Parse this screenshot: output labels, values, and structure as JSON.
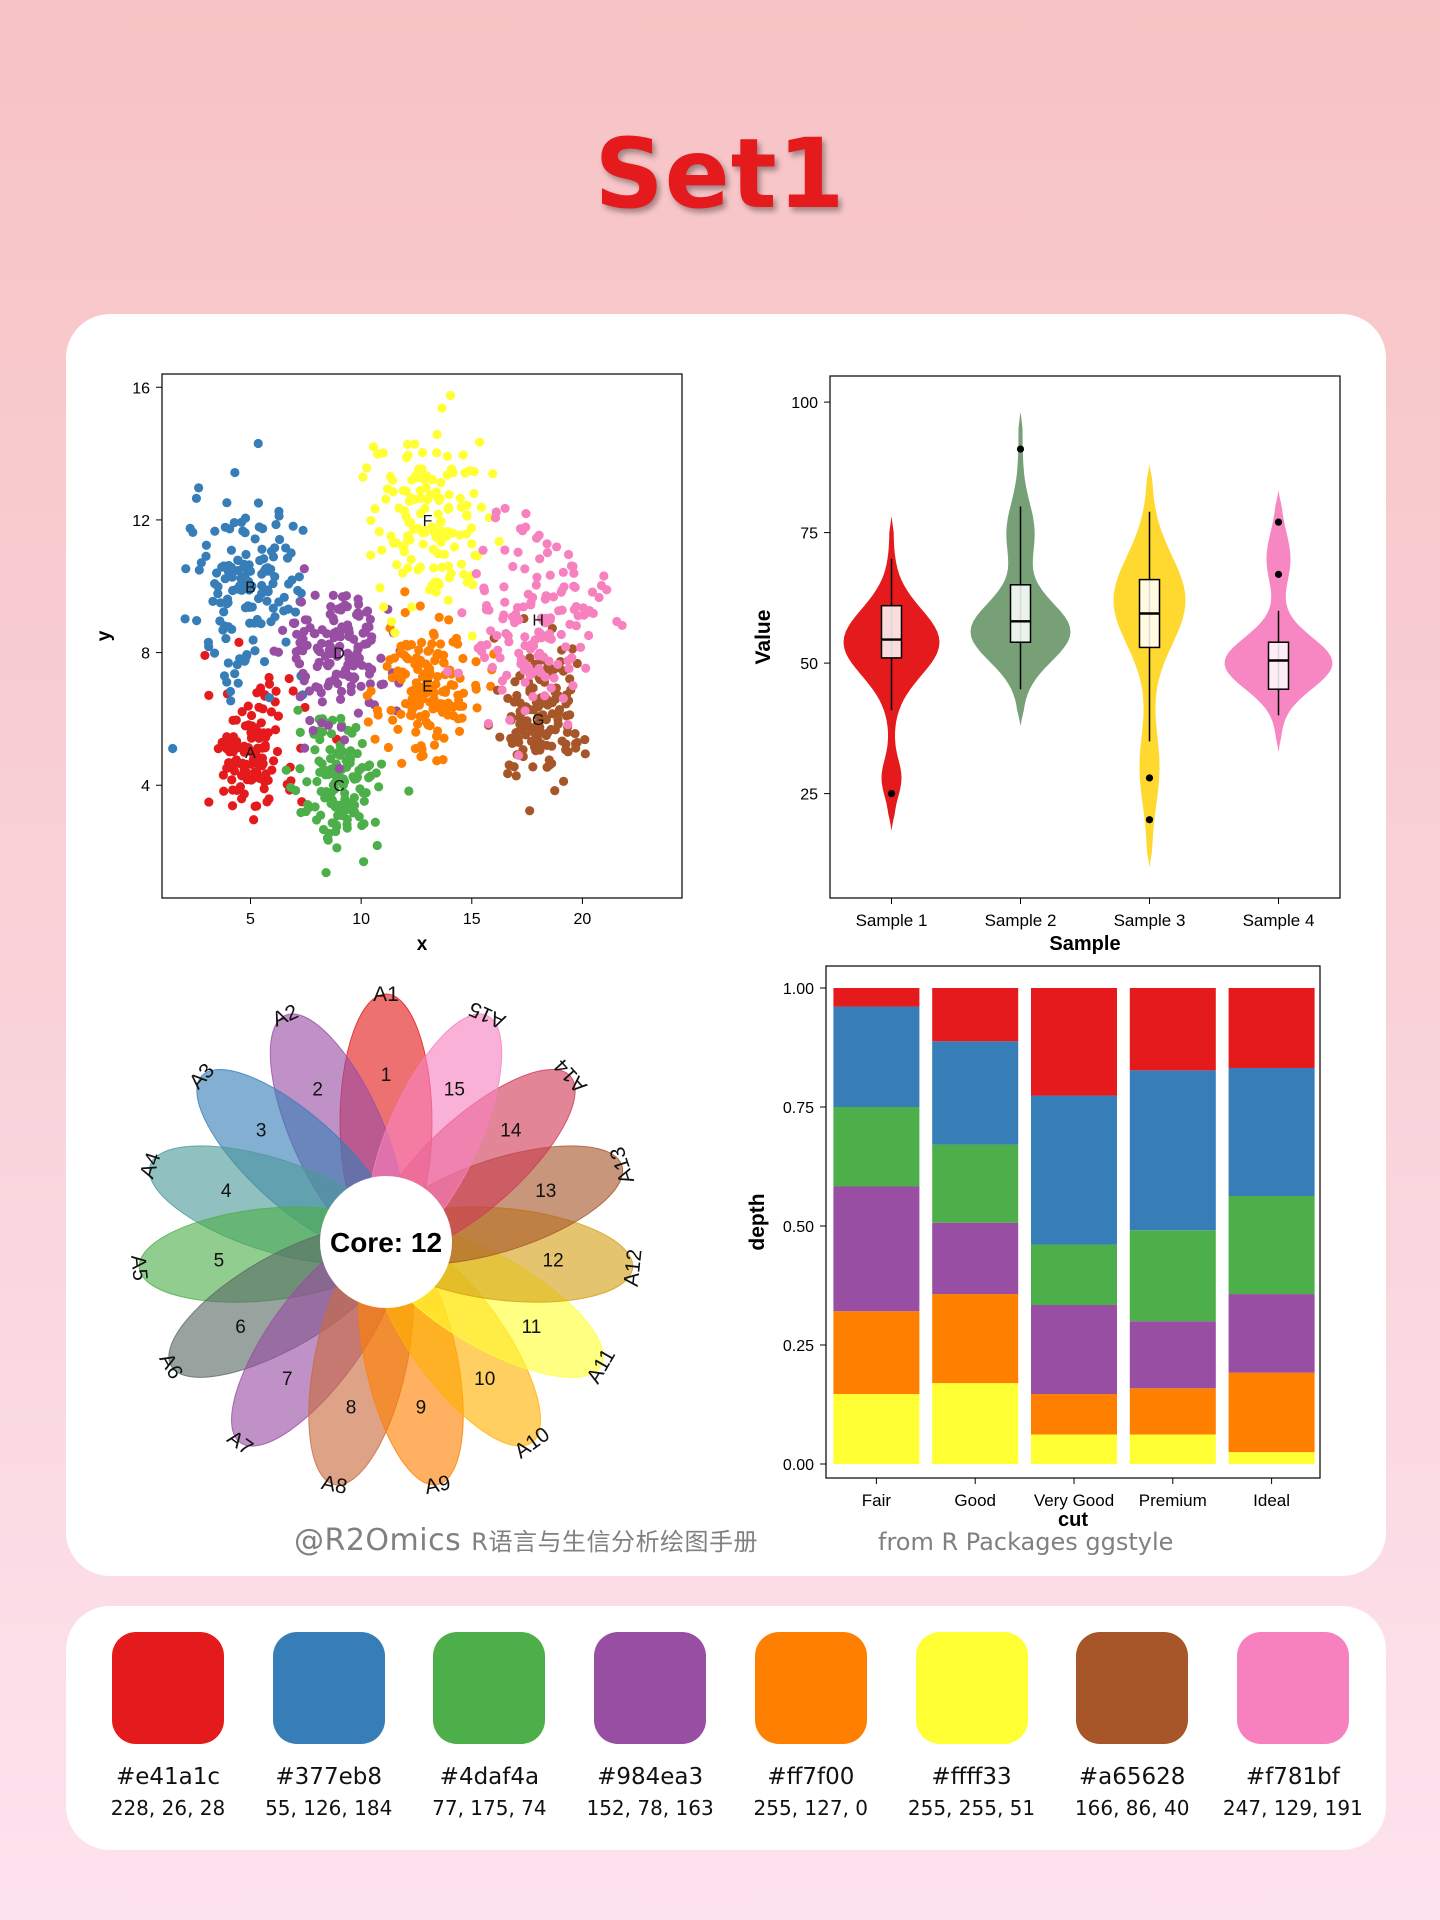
{
  "title": "Set1",
  "footer": {
    "handle": "@R2Omics",
    "handle_sub": "R语言与生信分析绘图手册",
    "source": "from  R Packages ggstyle"
  },
  "palette": [
    {
      "hex": "#e41a1c",
      "rgb": "228, 26, 28"
    },
    {
      "hex": "#377eb8",
      "rgb": "55, 126, 184"
    },
    {
      "hex": "#4daf4a",
      "rgb": "77, 175, 74"
    },
    {
      "hex": "#984ea3",
      "rgb": "152, 78, 163"
    },
    {
      "hex": "#ff7f00",
      "rgb": "255, 127, 0"
    },
    {
      "hex": "#ffff33",
      "rgb": "255, 255, 51"
    },
    {
      "hex": "#a65628",
      "rgb": "166, 86, 40"
    },
    {
      "hex": "#f781bf",
      "rgb": "247, 129, 191"
    }
  ],
  "chart_data": [
    {
      "type": "scatter",
      "xlabel": "x",
      "ylabel": "y",
      "xlim": [
        1,
        24.5
      ],
      "ylim": [
        0.6,
        16.4
      ],
      "xticks": [
        5,
        10,
        15,
        20
      ],
      "yticks": [
        4,
        8,
        12,
        16
      ],
      "clusters": [
        {
          "label": "A",
          "cx": 5,
          "cy": 5,
          "sd": [
            1.0,
            1.0
          ],
          "n": 130
        },
        {
          "label": "B",
          "cx": 5,
          "cy": 10,
          "sd": [
            1.3,
            1.4
          ],
          "n": 150
        },
        {
          "label": "C",
          "cx": 9,
          "cy": 4,
          "sd": [
            1.0,
            1.0
          ],
          "n": 140
        },
        {
          "label": "D",
          "cx": 9,
          "cy": 8,
          "sd": [
            1.2,
            1.1
          ],
          "n": 150
        },
        {
          "label": "E",
          "cx": 13,
          "cy": 7,
          "sd": [
            1.1,
            1.0
          ],
          "n": 150
        },
        {
          "label": "F",
          "cx": 13,
          "cy": 12,
          "sd": [
            1.3,
            1.3
          ],
          "n": 150
        },
        {
          "label": "G",
          "cx": 18,
          "cy": 6,
          "sd": [
            1.0,
            1.0
          ],
          "n": 140
        },
        {
          "label": "H",
          "cx": 18,
          "cy": 9,
          "sd": [
            1.4,
            1.4
          ],
          "n": 150
        }
      ]
    },
    {
      "type": "violin",
      "xlabel": "Sample",
      "ylabel": "Value",
      "ylim": [
        5,
        105
      ],
      "yticks": [
        25,
        50,
        75,
        100
      ],
      "categories": [
        "Sample 1",
        "Sample 2",
        "Sample 3",
        "Sample 4"
      ],
      "violins": [
        {
          "min": 18,
          "max": 78,
          "q1": 51,
          "median": 54.5,
          "q3": 61,
          "lower": 41,
          "upper": 70,
          "outliers": [
            25
          ]
        },
        {
          "min": 38,
          "max": 98,
          "q1": 54,
          "median": 58,
          "q3": 65,
          "lower": 45,
          "upper": 80,
          "outliers": [
            91
          ]
        },
        {
          "min": 11,
          "max": 88,
          "q1": 53,
          "median": 59.5,
          "q3": 66,
          "lower": 35,
          "upper": 79,
          "outliers": [
            28,
            20
          ]
        },
        {
          "min": 33,
          "max": 83,
          "q1": 45,
          "median": 50.5,
          "q3": 54,
          "lower": 40,
          "upper": 60,
          "outliers": [
            77,
            67
          ]
        }
      ]
    },
    {
      "type": "flower-venn",
      "core_label": "Core: 12",
      "petals": [
        {
          "label": "A1",
          "value": "1"
        },
        {
          "label": "A2",
          "value": "2"
        },
        {
          "label": "A3",
          "value": "3"
        },
        {
          "label": "A4",
          "value": "4"
        },
        {
          "label": "A5",
          "value": "5"
        },
        {
          "label": "A6",
          "value": "6"
        },
        {
          "label": "A7",
          "value": "7"
        },
        {
          "label": "A8",
          "value": "8"
        },
        {
          "label": "A9",
          "value": "9"
        },
        {
          "label": "A10",
          "value": "10"
        },
        {
          "label": "A11",
          "value": "11"
        },
        {
          "label": "A12",
          "value": "12"
        },
        {
          "label": "A13",
          "value": "13"
        },
        {
          "label": "A14",
          "value": "14"
        },
        {
          "label": "A15",
          "value": "15"
        }
      ],
      "petal_colors": [
        "#e41a1c",
        "#984ea3",
        "#377eb8",
        "#377eb8",
        "#4daf4a",
        "#4daf4a",
        "#737373",
        "#984ea3",
        "#a65628",
        "#ff7f00",
        "#ffb100",
        "#ffff33",
        "#d4a000",
        "#a65628",
        "#d02e57",
        "#f781bf"
      ]
    },
    {
      "type": "stacked-bar",
      "xlabel": "cut",
      "ylabel": "depth",
      "ylim": [
        0,
        1
      ],
      "yticks": [
        "0.00",
        "0.25",
        "0.50",
        "0.75",
        "1.00"
      ],
      "categories": [
        "Fair",
        "Good",
        "Very Good",
        "Premium",
        "Ideal"
      ],
      "segment_colors": [
        "#ffff33",
        "#ff7f00",
        "#984ea3",
        "#4daf4a",
        "#377eb8",
        "#e41a1c"
      ],
      "stacks": [
        [
          0.147,
          0.174,
          0.262,
          0.167,
          0.211,
          0.039
        ],
        [
          0.17,
          0.187,
          0.15,
          0.164,
          0.217,
          0.112
        ],
        [
          0.062,
          0.085,
          0.187,
          0.127,
          0.313,
          0.226
        ],
        [
          0.062,
          0.097,
          0.141,
          0.191,
          0.336,
          0.173
        ],
        [
          0.025,
          0.167,
          0.165,
          0.206,
          0.269,
          0.168
        ]
      ]
    }
  ]
}
